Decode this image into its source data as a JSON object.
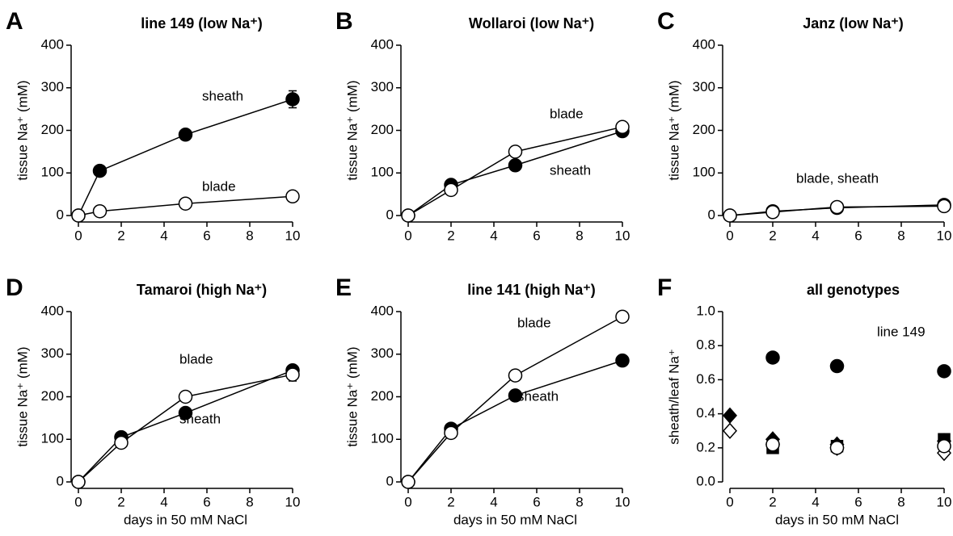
{
  "chart_data": [
    {
      "type": "line",
      "panel_label": "A",
      "title": "line 149 (low Na⁺)",
      "ylabel": "tissue Na⁺ (mM)",
      "x": [
        0,
        1,
        5,
        10
      ],
      "xlim": [
        0,
        10
      ],
      "xticks": [
        0,
        2,
        4,
        6,
        8,
        10
      ],
      "ylim": [
        0,
        400
      ],
      "yticks": [
        0,
        100,
        200,
        300,
        400
      ],
      "series": [
        {
          "name": "sheath",
          "color": "#000000",
          "marker": "circle",
          "values": [
            0,
            105,
            190,
            273
          ],
          "errors": [
            null,
            null,
            null,
            20
          ]
        },
        {
          "name": "blade",
          "color": "#ffffff",
          "marker": "circle",
          "values": [
            0,
            10,
            28,
            45
          ]
        }
      ]
    },
    {
      "type": "line",
      "panel_label": "B",
      "title": "Wollaroi (low Na⁺)",
      "ylabel": "tissue Na⁺ (mM)",
      "x": [
        0,
        2,
        5,
        10
      ],
      "xlim": [
        0,
        10
      ],
      "xticks": [
        0,
        2,
        4,
        6,
        8,
        10
      ],
      "ylim": [
        0,
        400
      ],
      "yticks": [
        0,
        100,
        200,
        300,
        400
      ],
      "series": [
        {
          "name": "sheath",
          "color": "#000000",
          "marker": "circle",
          "values": [
            0,
            72,
            118,
            198
          ]
        },
        {
          "name": "blade",
          "color": "#ffffff",
          "marker": "circle",
          "values": [
            0,
            60,
            150,
            208
          ]
        }
      ]
    },
    {
      "type": "line",
      "panel_label": "C",
      "title": "Janz (low Na⁺)",
      "ylabel": "tissue Na⁺ (mM)",
      "x": [
        0,
        2,
        5,
        10
      ],
      "xlim": [
        0,
        10
      ],
      "xticks": [
        0,
        2,
        4,
        6,
        8,
        10
      ],
      "ylim": [
        0,
        400
      ],
      "yticks": [
        0,
        100,
        200,
        300,
        400
      ],
      "annotations": [
        "blade, sheath"
      ],
      "series": [
        {
          "color": "#000000",
          "marker": "circle",
          "values": [
            0,
            10,
            18,
            25
          ]
        },
        {
          "color": "#ffffff",
          "marker": "circle",
          "values": [
            0,
            8,
            20,
            22
          ]
        }
      ]
    },
    {
      "type": "line",
      "panel_label": "D",
      "title": "Tamaroi (high Na⁺)",
      "ylabel": "tissue Na⁺ (mM)",
      "xlabel": "days in 50 mM NaCl",
      "x": [
        0,
        2,
        5,
        10
      ],
      "xlim": [
        0,
        10
      ],
      "xticks": [
        0,
        2,
        4,
        6,
        8,
        10
      ],
      "ylim": [
        0,
        400
      ],
      "yticks": [
        0,
        100,
        200,
        300,
        400
      ],
      "series": [
        {
          "name": "sheath",
          "color": "#000000",
          "marker": "circle",
          "values": [
            0,
            105,
            162,
            262
          ]
        },
        {
          "name": "blade",
          "color": "#ffffff",
          "marker": "circle",
          "values": [
            0,
            92,
            200,
            252
          ],
          "errors": [
            null,
            null,
            null,
            15
          ]
        }
      ]
    },
    {
      "type": "line",
      "panel_label": "E",
      "title": "line 141 (high Na⁺)",
      "ylabel": "tissue Na⁺ (mM)",
      "xlabel": "days in 50 mM NaCl",
      "x": [
        0,
        2,
        5,
        10
      ],
      "xlim": [
        0,
        10
      ],
      "xticks": [
        0,
        2,
        4,
        6,
        8,
        10
      ],
      "ylim": [
        0,
        400
      ],
      "yticks": [
        0,
        100,
        200,
        300,
        400
      ],
      "series": [
        {
          "name": "sheath",
          "color": "#000000",
          "marker": "circle",
          "values": [
            0,
            125,
            203,
            285
          ]
        },
        {
          "name": "blade",
          "color": "#ffffff",
          "marker": "circle",
          "values": [
            0,
            115,
            250,
            388
          ]
        }
      ]
    },
    {
      "type": "scatter",
      "panel_label": "F",
      "title": "all genotypes",
      "ylabel": "sheath/leaf Na⁺",
      "xlabel": "days in 50 mM NaCl",
      "xlim": [
        0,
        10
      ],
      "xticks": [
        0,
        2,
        4,
        6,
        8,
        10
      ],
      "ylim": [
        0,
        1
      ],
      "yticks": [
        {
          "value": 0,
          "label": "0.0"
        },
        0.2,
        0.4,
        0.6,
        0.8,
        {
          "value": 1,
          "label": "1.0"
        }
      ],
      "series": [
        {
          "name": "line 149",
          "color": "#000000",
          "marker": "circle",
          "x": [
            2,
            5,
            10
          ],
          "values": [
            0.73,
            0.68,
            0.65
          ]
        },
        {
          "color": "#000000",
          "marker": "diamond",
          "x": [
            0,
            2,
            5,
            10
          ],
          "values": [
            0.39,
            0.25,
            0.22,
            0.24
          ]
        },
        {
          "color": "#ffffff",
          "marker": "diamond",
          "x": [
            0,
            2,
            5,
            10
          ],
          "values": [
            0.3,
            0.22,
            0.2,
            0.17
          ]
        },
        {
          "color": "#000000",
          "marker": "square",
          "x": [
            2,
            5,
            10
          ],
          "values": [
            0.2,
            0.21,
            0.25
          ]
        },
        {
          "color": "#ffffff",
          "marker": "circle",
          "x": [
            2,
            5,
            10
          ],
          "values": [
            0.22,
            0.2,
            0.21
          ]
        }
      ]
    }
  ]
}
